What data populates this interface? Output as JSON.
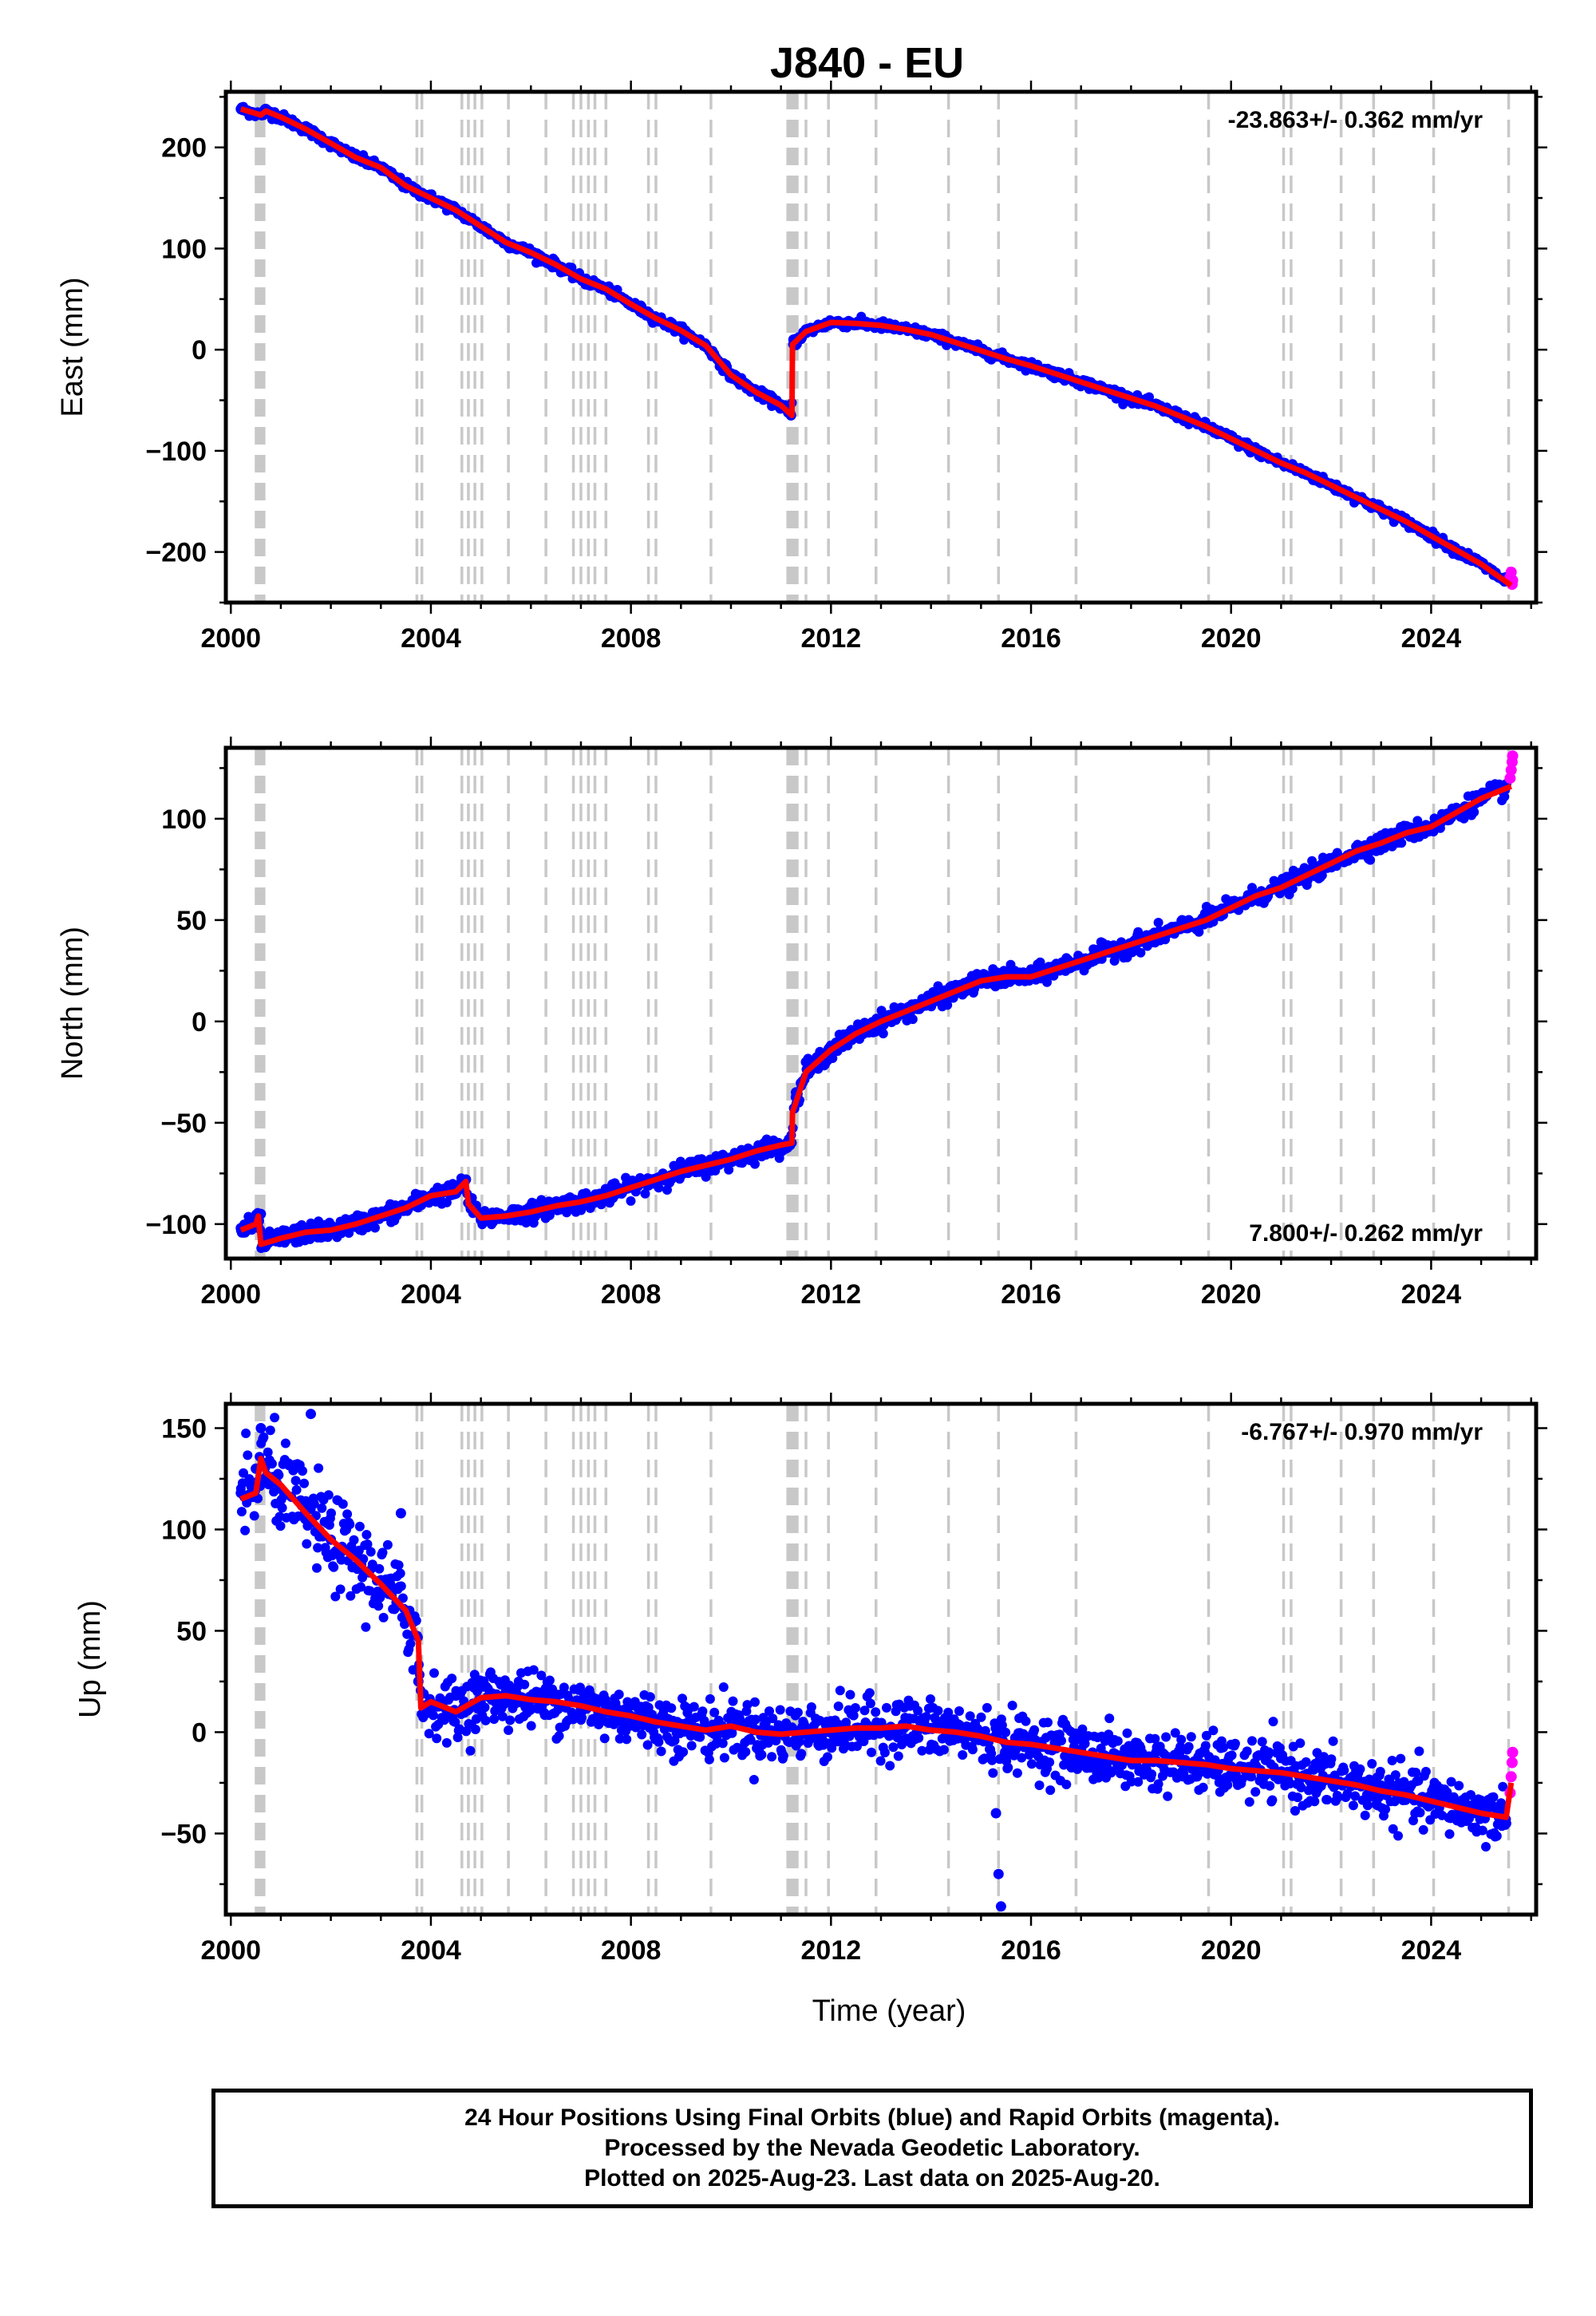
{
  "title": "J840 - EU",
  "footer": {
    "line1": "24 Hour Positions Using Final Orbits (blue) and Rapid Orbits (magenta).",
    "line2": "Processed by the Nevada Geodetic Laboratory.",
    "line3": "Plotted on 2025-Aug-23. Last data on 2025-Aug-20."
  },
  "colors": {
    "final": "#0000ff",
    "rapid": "#ff00ff",
    "model": "#ff0000",
    "events": "#c8c8c8"
  },
  "chart_data": [
    {
      "type": "scatter",
      "component": "East",
      "ylabel": "East (mm)",
      "xlabel": "",
      "rate_label": "-23.863+/- 0.362 mm/yr",
      "rate_position": "top-right",
      "xlim": [
        1999.9,
        2026.1
      ],
      "ylim": [
        -250,
        255
      ],
      "xticks": [
        2000,
        2004,
        2008,
        2012,
        2016,
        2020,
        2024
      ],
      "yticks": [
        -200,
        -100,
        0,
        100,
        200
      ],
      "grid": false,
      "series": [
        {
          "role": "final",
          "x": [
            2000.2,
            2000.5,
            2000.7,
            2001.0,
            2001.5,
            2002.0,
            2002.5,
            2003.0,
            2003.5,
            2003.8,
            2004.0,
            2004.5,
            2005.0,
            2005.5,
            2006.0,
            2006.5,
            2007.0,
            2007.5,
            2008.0,
            2008.5,
            2009.0,
            2009.5,
            2010.0,
            2010.5,
            2011.0,
            2011.2,
            2011.25,
            2011.5,
            2012.0,
            2012.5,
            2013.0,
            2013.5,
            2014.0,
            2014.5,
            2015.0,
            2015.5,
            2016.0,
            2016.5,
            2017.0,
            2017.5,
            2018.0,
            2018.5,
            2019.0,
            2019.5,
            2020.0,
            2020.5,
            2021.0,
            2021.5,
            2022.0,
            2022.5,
            2023.0,
            2023.5,
            2024.0,
            2024.5,
            2025.0,
            2025.5
          ],
          "y": [
            238,
            234,
            237,
            230,
            218,
            205,
            190,
            180,
            163,
            153,
            150,
            138,
            122,
            107,
            96,
            84,
            71,
            60,
            45,
            32,
            20,
            5,
            -25,
            -42,
            -58,
            -65,
            10,
            20,
            28,
            26,
            24,
            22,
            15,
            8,
            0,
            -9,
            -16,
            -24,
            -32,
            -40,
            -48,
            -55,
            -65,
            -75,
            -88,
            -100,
            -112,
            -123,
            -134,
            -145,
            -158,
            -170,
            -185,
            -198,
            -210,
            -225
          ]
        },
        {
          "role": "rapid",
          "x": [
            2025.58,
            2025.6,
            2025.62,
            2025.63
          ],
          "y": [
            -225,
            -220,
            -232,
            -228
          ]
        },
        {
          "role": "model",
          "x": [
            2000.2,
            2000.6,
            2000.7,
            2001.0,
            2001.5,
            2002.0,
            2002.5,
            2003.0,
            2003.5,
            2004.0,
            2004.5,
            2005.0,
            2005.5,
            2006.0,
            2006.5,
            2007.0,
            2007.5,
            2008.0,
            2008.5,
            2009.0,
            2009.5,
            2010.0,
            2010.5,
            2011.0,
            2011.22,
            2011.23,
            2011.5,
            2012.0,
            2012.5,
            2013.0,
            2013.5,
            2014.0,
            2014.5,
            2015.0,
            2015.5,
            2016.0,
            2016.5,
            2017.0,
            2017.5,
            2018.0,
            2018.5,
            2019.0,
            2019.5,
            2020.0,
            2020.5,
            2021.0,
            2021.5,
            2022.0,
            2022.5,
            2023.0,
            2023.5,
            2024.0,
            2024.5,
            2025.0,
            2025.6
          ],
          "y": [
            238,
            232,
            236,
            230,
            218,
            204,
            190,
            180,
            162,
            150,
            138,
            122,
            106,
            96,
            84,
            70,
            60,
            45,
            31,
            19,
            4,
            -25,
            -42,
            -55,
            -65,
            5,
            18,
            27,
            26,
            24,
            20,
            15,
            7,
            -1,
            -9,
            -16,
            -24,
            -32,
            -40,
            -48,
            -56,
            -66,
            -76,
            -88,
            -100,
            -112,
            -122,
            -134,
            -146,
            -158,
            -170,
            -184,
            -198,
            -212,
            -233
          ]
        }
      ]
    },
    {
      "type": "scatter",
      "component": "North",
      "ylabel": "North (mm)",
      "xlabel": "",
      "rate_label": "7.800+/- 0.262 mm/yr",
      "rate_position": "bottom-right",
      "xlim": [
        1999.9,
        2026.1
      ],
      "ylim": [
        -117,
        135
      ],
      "xticks": [
        2000,
        2004,
        2008,
        2012,
        2016,
        2020,
        2024
      ],
      "yticks": [
        -100,
        -50,
        0,
        50,
        100
      ],
      "grid": false,
      "series": [
        {
          "role": "final",
          "x": [
            2000.2,
            2000.4,
            2000.6,
            2001.0,
            2001.5,
            2002.0,
            2002.5,
            2003.0,
            2003.5,
            2003.8,
            2004.0,
            2004.5,
            2004.7,
            2004.8,
            2005.0,
            2005.5,
            2006.0,
            2006.5,
            2007.0,
            2007.5,
            2008.0,
            2008.5,
            2009.0,
            2009.5,
            2010.0,
            2010.5,
            2011.0,
            2011.2,
            2011.3,
            2011.5,
            2012.0,
            2012.5,
            2013.0,
            2013.5,
            2014.0,
            2014.5,
            2015.0,
            2015.5,
            2016.0,
            2016.5,
            2017.0,
            2017.5,
            2018.0,
            2018.5,
            2019.0,
            2019.5,
            2020.0,
            2020.5,
            2021.0,
            2021.5,
            2022.0,
            2022.5,
            2023.0,
            2023.5,
            2024.0,
            2024.5,
            2025.0,
            2025.5
          ],
          "y": [
            -102,
            -98,
            -95,
            -108,
            -104,
            -102,
            -100,
            -96,
            -93,
            -86,
            -86,
            -85,
            -78,
            -92,
            -98,
            -96,
            -95,
            -92,
            -90,
            -87,
            -82,
            -78,
            -74,
            -71,
            -68,
            -64,
            -61,
            -60,
            -35,
            -20,
            -12,
            -5,
            0,
            5,
            10,
            15,
            20,
            22,
            22,
            26,
            30,
            34,
            38,
            42,
            46,
            50,
            56,
            62,
            66,
            72,
            78,
            84,
            88,
            93,
            96,
            103,
            110,
            117
          ]
        },
        {
          "role": "rapid",
          "x": [
            2025.58,
            2025.6,
            2025.62,
            2025.63
          ],
          "y": [
            120,
            124,
            128,
            131
          ]
        },
        {
          "role": "model",
          "x": [
            2000.2,
            2000.5,
            2000.55,
            2000.6,
            2001.0,
            2001.5,
            2002.0,
            2002.5,
            2003.0,
            2003.5,
            2004.0,
            2004.5,
            2004.7,
            2004.75,
            2005.0,
            2005.5,
            2006.0,
            2006.5,
            2007.0,
            2007.5,
            2008.0,
            2008.5,
            2009.0,
            2009.5,
            2010.0,
            2010.5,
            2011.0,
            2011.22,
            2011.23,
            2011.5,
            2012.0,
            2012.5,
            2013.0,
            2013.5,
            2014.0,
            2014.5,
            2015.0,
            2015.5,
            2016.0,
            2016.5,
            2017.0,
            2017.5,
            2018.0,
            2018.5,
            2019.0,
            2019.5,
            2020.0,
            2020.5,
            2021.0,
            2021.5,
            2022.0,
            2022.5,
            2023.0,
            2023.5,
            2024.0,
            2024.5,
            2025.0,
            2025.6
          ],
          "y": [
            -103,
            -100,
            -96,
            -110,
            -107,
            -104,
            -103,
            -100,
            -96,
            -92,
            -86,
            -84,
            -79,
            -90,
            -97,
            -96,
            -94,
            -91,
            -89,
            -86,
            -82,
            -78,
            -74,
            -71,
            -68,
            -64,
            -61,
            -60,
            -45,
            -25,
            -14,
            -6,
            0,
            5,
            10,
            15,
            20,
            22,
            22,
            26,
            30,
            34,
            38,
            42,
            46,
            50,
            56,
            62,
            66,
            72,
            78,
            84,
            88,
            93,
            96,
            103,
            110,
            116
          ]
        }
      ]
    },
    {
      "type": "scatter",
      "component": "Up",
      "ylabel": "Up (mm)",
      "xlabel": "Time (year)",
      "rate_label": "-6.767+/- 0.970 mm/yr",
      "rate_position": "top-right",
      "xlim": [
        1999.9,
        2026.1
      ],
      "ylim": [
        -90,
        162
      ],
      "xticks": [
        2000,
        2004,
        2008,
        2012,
        2016,
        2020,
        2024
      ],
      "yticks": [
        -50,
        0,
        50,
        100,
        150
      ],
      "grid": false,
      "series": [
        {
          "role": "final",
          "x": [
            2000.2,
            2000.5,
            2000.6,
            2001.0,
            2001.5,
            2001.6,
            2002.0,
            2002.5,
            2003.0,
            2003.4,
            2003.5,
            2003.75,
            2004.0,
            2004.5,
            2005.0,
            2005.5,
            2006.0,
            2006.5,
            2007.0,
            2007.5,
            2008.0,
            2008.5,
            2009.0,
            2009.5,
            2010.0,
            2010.5,
            2011.0,
            2011.5,
            2012.0,
            2012.5,
            2013.0,
            2013.5,
            2014.0,
            2014.5,
            2015.0,
            2015.3,
            2015.35,
            2015.4,
            2015.5,
            2016.0,
            2016.5,
            2017.0,
            2017.5,
            2018.0,
            2018.5,
            2019.0,
            2019.5,
            2020.0,
            2020.5,
            2021.0,
            2021.5,
            2022.0,
            2022.5,
            2023.0,
            2023.5,
            2024.0,
            2024.5,
            2025.0,
            2025.5
          ],
          "y": [
            118,
            130,
            150,
            120,
            110,
            157,
            95,
            88,
            75,
            108,
            60,
            25,
            12,
            18,
            14,
            20,
            16,
            15,
            12,
            10,
            8,
            6,
            4,
            2,
            3,
            1,
            0,
            -1,
            0,
            2,
            2,
            3,
            2,
            0,
            -2,
            -40,
            -70,
            -86,
            -6,
            -6,
            -8,
            -10,
            -12,
            -14,
            -14,
            -15,
            -16,
            -17,
            -18,
            -20,
            -22,
            -24,
            -26,
            -28,
            -30,
            -33,
            -36,
            -40,
            -45
          ]
        },
        {
          "role": "rapid",
          "x": [
            2025.58,
            2025.6,
            2025.62,
            2025.63
          ],
          "y": [
            -30,
            -22,
            -15,
            -10
          ]
        },
        {
          "role": "model",
          "x": [
            2000.2,
            2000.5,
            2000.6,
            2000.7,
            2001.0,
            2001.5,
            2002.0,
            2002.5,
            2003.0,
            2003.5,
            2003.75,
            2003.8,
            2004.0,
            2004.5,
            2005.0,
            2005.5,
            2006.0,
            2006.5,
            2007.0,
            2007.5,
            2008.0,
            2008.5,
            2009.0,
            2009.5,
            2010.0,
            2010.5,
            2011.0,
            2011.5,
            2012.0,
            2012.5,
            2013.0,
            2013.5,
            2014.0,
            2014.5,
            2015.0,
            2015.5,
            2016.0,
            2016.5,
            2017.0,
            2017.5,
            2018.0,
            2018.5,
            2019.0,
            2019.5,
            2020.0,
            2020.5,
            2021.0,
            2021.5,
            2022.0,
            2022.5,
            2023.0,
            2023.5,
            2024.0,
            2024.5,
            2025.0,
            2025.5,
            2025.6
          ],
          "y": [
            115,
            118,
            135,
            128,
            122,
            108,
            95,
            85,
            73,
            60,
            45,
            12,
            15,
            10,
            17,
            18,
            16,
            15,
            13,
            10,
            8,
            5,
            3,
            1,
            3,
            0,
            -1,
            0,
            1,
            2,
            2,
            3,
            1,
            0,
            -2,
            -5,
            -6,
            -8,
            -10,
            -12,
            -14,
            -14,
            -15,
            -16,
            -18,
            -19,
            -20,
            -22,
            -24,
            -26,
            -29,
            -31,
            -34,
            -37,
            -40,
            -42,
            -25
          ]
        }
      ]
    }
  ],
  "events": [
    2000.55,
    2000.62,
    2003.72,
    2003.82,
    2004.62,
    2004.75,
    2004.88,
    2005.02,
    2005.55,
    2006.3,
    2006.85,
    2007.0,
    2007.15,
    2007.28,
    2007.5,
    2008.35,
    2008.5,
    2009.6,
    2011.18,
    2011.28,
    2011.5,
    2011.95,
    2012.9,
    2014.35,
    2015.35,
    2016.9,
    2019.55,
    2021.05,
    2021.2,
    2022.2,
    2022.85,
    2024.05,
    2025.55
  ],
  "thick_events": [
    2000.55,
    2000.62,
    2011.18,
    2011.28
  ]
}
